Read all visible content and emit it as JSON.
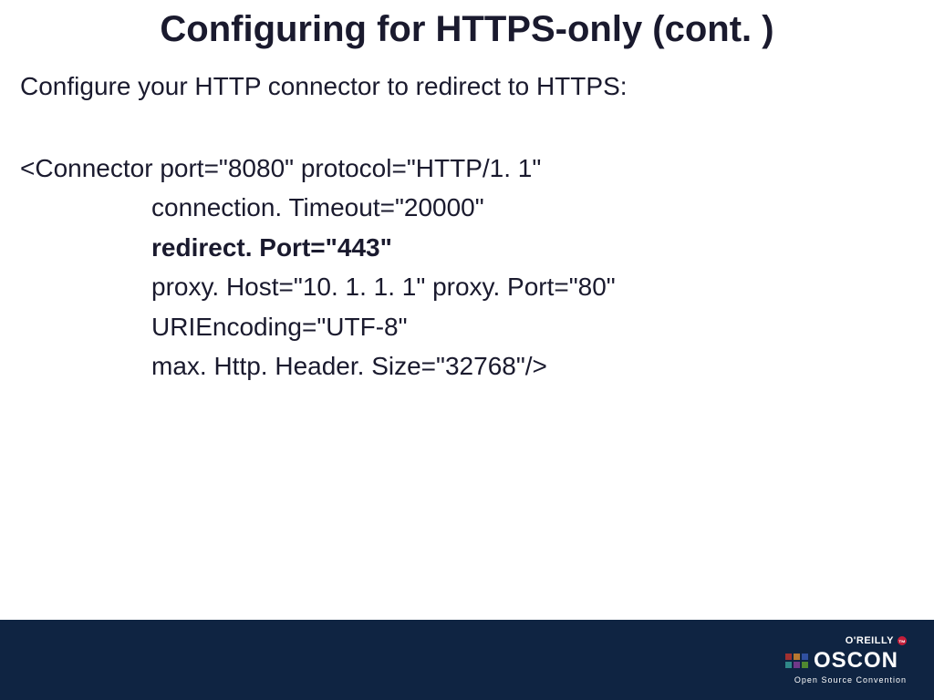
{
  "slide": {
    "title": "Configuring for HTTPS-only (cont. )",
    "subtitle": "Configure your HTTP connector to redirect to HTTPS:",
    "code": {
      "line1": "<Connector port=\"8080\" protocol=\"HTTP/1. 1\"",
      "line2": "connection. Timeout=\"20000\"",
      "line3": "redirect. Port=\"443\"",
      "line4": "proxy. Host=\"10. 1. 1. 1\" proxy. Port=\"80\"",
      "line5": "URIEncoding=\"UTF-8\"",
      "line6": "max. Http. Header. Size=\"32768\"/>"
    }
  },
  "footer": {
    "publisher": "O'REILLY",
    "conference_name": "OSCON",
    "conference_tagline": "Open Source Convention",
    "trademark": "™"
  },
  "colors": {
    "title_color": "#1a1a2e",
    "body_color": "#1a1a2e",
    "footer_bg": "#0f2442",
    "footer_text": "#ffffff",
    "oreilly_dot": "#c41e3a",
    "background": "#ffffff"
  },
  "typography": {
    "title_fontsize": 40,
    "subtitle_fontsize": 28,
    "code_fontsize": 28,
    "font_family": "Arial"
  }
}
